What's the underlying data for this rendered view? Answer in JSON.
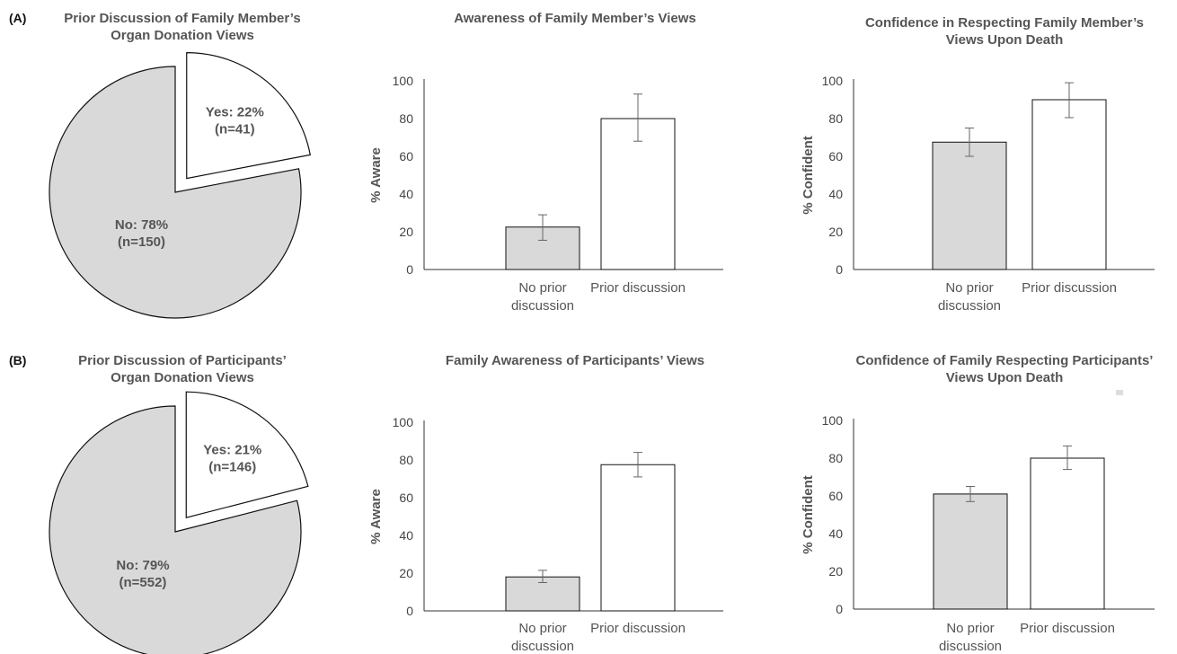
{
  "panel_labels": [
    "(A)",
    "(B)"
  ],
  "colors": {
    "gray_fill": "#d9d9d9",
    "white_fill": "#ffffff",
    "stroke": "#111111",
    "axis": "#333333",
    "errorbar": "#666666",
    "text": "#555555"
  },
  "chart_data": [
    {
      "type": "pie",
      "panel": "A",
      "title": [
        "Prior Discussion of Family Member’s",
        "Organ Donation Views"
      ],
      "slices": [
        {
          "label": "Yes",
          "value": 22,
          "n": 41,
          "text": [
            "Yes: 22%",
            "(n=41)"
          ],
          "color": "#ffffff",
          "exploded": true
        },
        {
          "label": "No",
          "value": 78,
          "n": 150,
          "text": [
            "No: 78%",
            "(n=150)"
          ],
          "color": "#d9d9d9",
          "exploded": false
        }
      ]
    },
    {
      "type": "bar",
      "panel": "A",
      "title": [
        "Awareness of Family Member’s Views"
      ],
      "ylabel": "% Aware",
      "ylim": [
        0,
        100
      ],
      "yticks": [
        "0",
        "20",
        "40",
        "60",
        "80",
        "100"
      ],
      "categories": [
        [
          "No prior",
          "discussion"
        ],
        [
          "Prior discussion"
        ]
      ],
      "values": [
        22.5,
        80
      ],
      "err_low": [
        15.5,
        68
      ],
      "err_high": [
        29,
        93
      ],
      "bar_colors": [
        "#d9d9d9",
        "#ffffff"
      ]
    },
    {
      "type": "bar",
      "panel": "A",
      "title": [
        "Confidence in Respecting Family Member’s",
        "Views Upon Death"
      ],
      "ylabel": "% Confident",
      "ylim": [
        0,
        100
      ],
      "yticks": [
        "0",
        "20",
        "40",
        "60",
        "80",
        "100"
      ],
      "categories": [
        [
          "No prior",
          "discussion"
        ],
        [
          "Prior discussion"
        ]
      ],
      "values": [
        67.5,
        90
      ],
      "err_low": [
        60,
        80.5
      ],
      "err_high": [
        75,
        99
      ],
      "bar_colors": [
        "#d9d9d9",
        "#ffffff"
      ]
    },
    {
      "type": "pie",
      "panel": "B",
      "title": [
        "Prior Discussion of Participants’",
        "Organ Donation Views"
      ],
      "slices": [
        {
          "label": "Yes",
          "value": 21,
          "n": 146,
          "text": [
            "Yes: 21%",
            "(n=146)"
          ],
          "color": "#ffffff",
          "exploded": true
        },
        {
          "label": "No",
          "value": 79,
          "n": 552,
          "text": [
            "No: 79%",
            "(n=552)"
          ],
          "color": "#d9d9d9",
          "exploded": false
        }
      ]
    },
    {
      "type": "bar",
      "panel": "B",
      "title": [
        "Family Awareness of Participants’ Views"
      ],
      "ylabel": "% Aware",
      "ylim": [
        0,
        100
      ],
      "yticks": [
        "0",
        "20",
        "40",
        "60",
        "80",
        "100"
      ],
      "categories": [
        [
          "No prior",
          "discussion"
        ],
        [
          "Prior discussion"
        ]
      ],
      "values": [
        18,
        77.5
      ],
      "err_low": [
        15,
        71
      ],
      "err_high": [
        21.5,
        84
      ],
      "bar_colors": [
        "#d9d9d9",
        "#ffffff"
      ]
    },
    {
      "type": "bar",
      "panel": "B",
      "title": [
        "Confidence of Family Respecting Participants’",
        "Views Upon Death"
      ],
      "ylabel": "% Confident",
      "ylim": [
        0,
        100
      ],
      "yticks": [
        "0",
        "20",
        "40",
        "60",
        "80",
        "100"
      ],
      "categories": [
        [
          "No prior",
          "discussion"
        ],
        [
          "Prior discussion"
        ]
      ],
      "values": [
        61,
        80
      ],
      "err_low": [
        57,
        74
      ],
      "err_high": [
        65,
        86.5
      ],
      "bar_colors": [
        "#d9d9d9",
        "#ffffff"
      ]
    }
  ]
}
